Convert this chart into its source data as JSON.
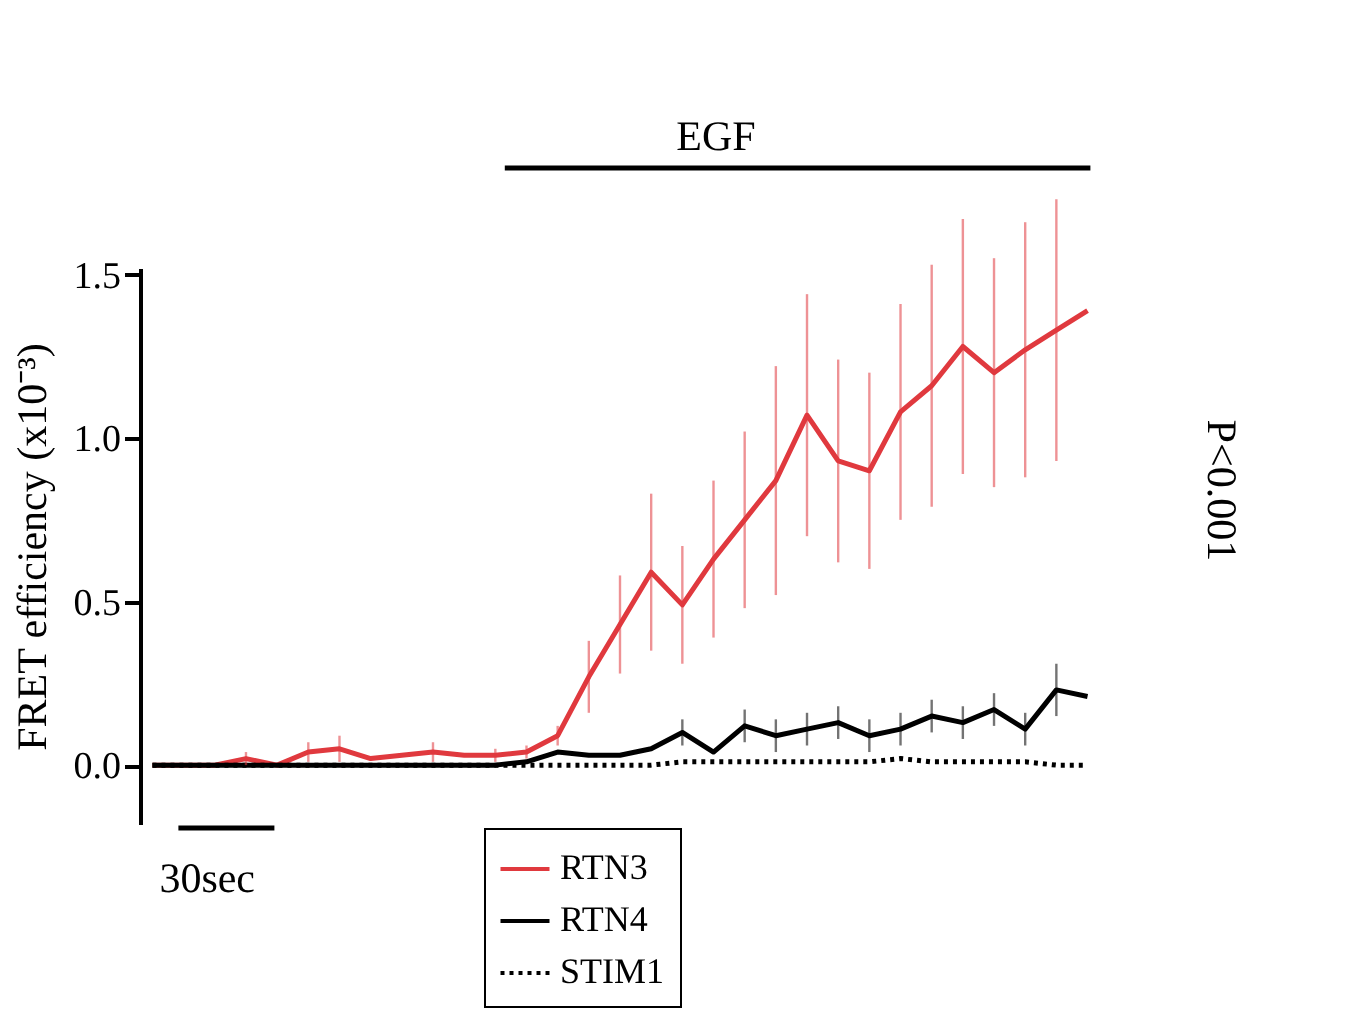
{
  "chart_data": {
    "type": "line",
    "ylabel": "FRET efficiency (x10⁻³)",
    "categories": [
      null,
      null,
      null,
      null,
      null,
      null,
      null,
      null,
      null,
      null,
      null,
      null,
      null,
      null,
      null,
      null,
      null,
      null,
      null,
      null,
      null,
      null,
      null,
      null,
      null,
      null,
      null,
      null,
      null,
      null,
      null
    ],
    "ylim": [
      -0.18,
      1.52
    ],
    "yticks": [
      {
        "value": 0,
        "label": "0.0"
      },
      {
        "value": 0.5,
        "label": "0.5"
      },
      {
        "value": 1,
        "label": "1.0"
      },
      {
        "value": 1.5,
        "label": "1.5"
      }
    ],
    "tick_labels": "y",
    "legend": "bottom",
    "series": [
      {
        "name": "RTN3",
        "color": "#e0393e",
        "line_style": "solid",
        "values": [
          0,
          0,
          0,
          0.02,
          0,
          0.04,
          0.05,
          0.02,
          0.03,
          0.04,
          0.03,
          0.03,
          0.04,
          0.09,
          0.27,
          0.43,
          0.59,
          0.49,
          0.63,
          0.75,
          0.87,
          1.07,
          0.93,
          0.9,
          1.08,
          1.16,
          1.28,
          1.2,
          1.27,
          1.33,
          1.39
        ],
        "errors": [
          null,
          null,
          null,
          0.02,
          null,
          0.03,
          0.04,
          null,
          null,
          0.03,
          null,
          0.02,
          0.02,
          0.03,
          0.11,
          0.15,
          0.24,
          0.18,
          0.24,
          0.27,
          0.35,
          0.37,
          0.31,
          0.3,
          0.33,
          0.37,
          0.39,
          0.35,
          0.39,
          0.4,
          null
        ]
      },
      {
        "name": "RTN4",
        "color": "#000000",
        "line_style": "solid",
        "values": [
          0,
          0,
          0,
          0,
          0,
          0,
          0,
          0,
          0,
          0,
          0,
          0,
          0.01,
          0.04,
          0.03,
          0.03,
          0.05,
          0.1,
          0.04,
          0.12,
          0.09,
          0.11,
          0.13,
          0.09,
          0.11,
          0.15,
          0.13,
          0.17,
          0.11,
          0.23,
          0.21
        ],
        "errors": [
          null,
          null,
          null,
          null,
          null,
          null,
          null,
          null,
          null,
          null,
          null,
          null,
          null,
          null,
          null,
          null,
          null,
          0.04,
          null,
          0.05,
          0.05,
          0.05,
          0.05,
          0.05,
          0.05,
          0.05,
          0.05,
          0.05,
          0.05,
          0.08,
          null
        ]
      },
      {
        "name": "STIM1",
        "color": "#000000",
        "line_style": "dotted",
        "values": [
          0,
          0,
          0,
          0,
          0,
          0,
          0,
          0,
          0,
          0,
          0,
          0,
          0,
          0,
          0,
          0,
          0,
          0.01,
          0.01,
          0.01,
          0.01,
          0.01,
          0.01,
          0.01,
          0.02,
          0.01,
          0.01,
          0.01,
          0.01,
          0,
          0
        ]
      }
    ],
    "annotations": [
      "EGF",
      "30sec",
      "P<0.001"
    ]
  }
}
